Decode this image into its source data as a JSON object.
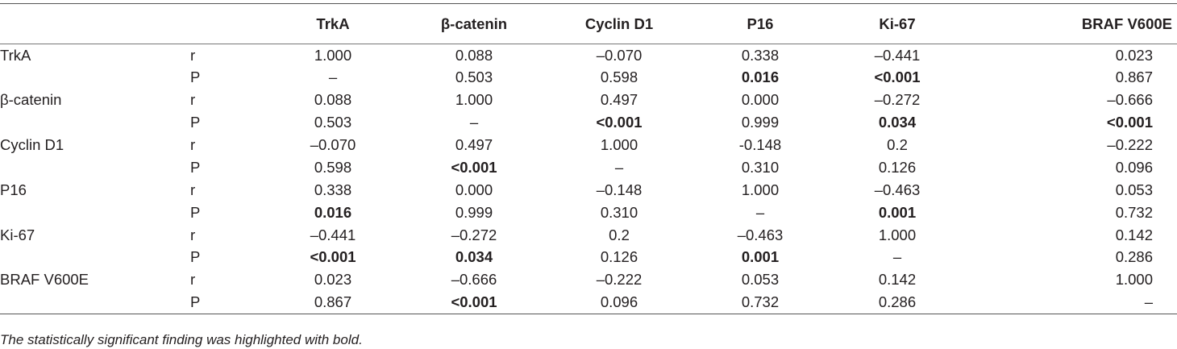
{
  "table": {
    "columns": [
      "TrkA",
      "β-catenin",
      "Cyclin D1",
      "P16",
      "Ki-67",
      "BRAF V600E"
    ],
    "rows": [
      {
        "name": "TrkA",
        "stat": "r",
        "values": [
          "1.000",
          "0.088",
          "–0.070",
          "0.338",
          "–0.441",
          "0.023"
        ],
        "bold": [
          false,
          false,
          false,
          false,
          false,
          false
        ]
      },
      {
        "name": "",
        "stat": "P",
        "values": [
          "–",
          "0.503",
          "0.598",
          "0.016",
          "<0.001",
          "0.867"
        ],
        "bold": [
          false,
          false,
          false,
          true,
          true,
          false
        ]
      },
      {
        "name": "β-catenin",
        "stat": "r",
        "values": [
          "0.088",
          "1.000",
          "0.497",
          "0.000",
          "–0.272",
          "–0.666"
        ],
        "bold": [
          false,
          false,
          false,
          false,
          false,
          false
        ]
      },
      {
        "name": "",
        "stat": "P",
        "values": [
          "0.503",
          "–",
          "<0.001",
          "0.999",
          "0.034",
          "<0.001"
        ],
        "bold": [
          false,
          false,
          true,
          false,
          true,
          true
        ]
      },
      {
        "name": "Cyclin D1",
        "stat": "r",
        "values": [
          "–0.070",
          "0.497",
          "1.000",
          "-0.148",
          "0.2",
          "–0.222"
        ],
        "bold": [
          false,
          false,
          false,
          false,
          false,
          false
        ]
      },
      {
        "name": "",
        "stat": "P",
        "values": [
          "0.598",
          "<0.001",
          "–",
          "0.310",
          "0.126",
          "0.096"
        ],
        "bold": [
          false,
          true,
          false,
          false,
          false,
          false
        ]
      },
      {
        "name": "P16",
        "stat": "r",
        "values": [
          "0.338",
          "0.000",
          "–0.148",
          "1.000",
          "–0.463",
          "0.053"
        ],
        "bold": [
          false,
          false,
          false,
          false,
          false,
          false
        ]
      },
      {
        "name": "",
        "stat": "P",
        "values": [
          "0.016",
          "0.999",
          "0.310",
          "–",
          "0.001",
          "0.732"
        ],
        "bold": [
          true,
          false,
          false,
          false,
          true,
          false
        ]
      },
      {
        "name": "Ki-67",
        "stat": "r",
        "values": [
          "–0.441",
          "–0.272",
          "0.2",
          "–0.463",
          "1.000",
          "0.142"
        ],
        "bold": [
          false,
          false,
          false,
          false,
          false,
          false
        ]
      },
      {
        "name": "",
        "stat": "P",
        "values": [
          "<0.001",
          "0.034",
          "0.126",
          "0.001",
          "–",
          "0.286"
        ],
        "bold": [
          true,
          true,
          false,
          true,
          false,
          false
        ]
      },
      {
        "name": "BRAF V600E",
        "stat": "r",
        "values": [
          "0.023",
          "–0.666",
          "–0.222",
          "0.053",
          "0.142",
          "1.000"
        ],
        "bold": [
          false,
          false,
          false,
          false,
          false,
          false
        ]
      },
      {
        "name": "",
        "stat": "P",
        "values": [
          "0.867",
          "<0.001",
          "0.096",
          "0.732",
          "0.286",
          "–"
        ],
        "bold": [
          false,
          true,
          false,
          false,
          false,
          false
        ]
      }
    ]
  },
  "footnote": "The statistically significant finding was highlighted with bold."
}
